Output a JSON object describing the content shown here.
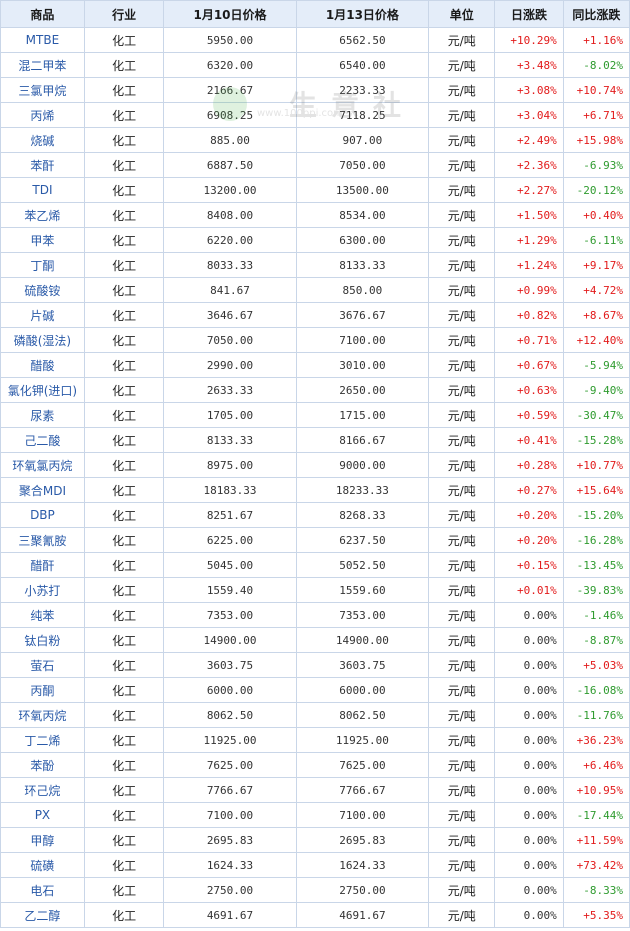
{
  "table": {
    "headers": [
      "商品",
      "行业",
      "1月10日价格",
      "1月13日价格",
      "单位",
      "日涨跌",
      "同比涨跌"
    ],
    "rows": [
      [
        "MTBE",
        "化工",
        "5950.00",
        "6562.50",
        "元/吨",
        "+10.29%",
        "+1.16%"
      ],
      [
        "混二甲苯",
        "化工",
        "6320.00",
        "6540.00",
        "元/吨",
        "+3.48%",
        "-8.02%"
      ],
      [
        "三氯甲烷",
        "化工",
        "2166.67",
        "2233.33",
        "元/吨",
        "+3.08%",
        "+10.74%"
      ],
      [
        "丙烯",
        "化工",
        "6908.25",
        "7118.25",
        "元/吨",
        "+3.04%",
        "+6.71%"
      ],
      [
        "烧碱",
        "化工",
        "885.00",
        "907.00",
        "元/吨",
        "+2.49%",
        "+15.98%"
      ],
      [
        "苯酐",
        "化工",
        "6887.50",
        "7050.00",
        "元/吨",
        "+2.36%",
        "-6.93%"
      ],
      [
        "TDI",
        "化工",
        "13200.00",
        "13500.00",
        "元/吨",
        "+2.27%",
        "-20.12%"
      ],
      [
        "苯乙烯",
        "化工",
        "8408.00",
        "8534.00",
        "元/吨",
        "+1.50%",
        "+0.40%"
      ],
      [
        "甲苯",
        "化工",
        "6220.00",
        "6300.00",
        "元/吨",
        "+1.29%",
        "-6.11%"
      ],
      [
        "丁酮",
        "化工",
        "8033.33",
        "8133.33",
        "元/吨",
        "+1.24%",
        "+9.17%"
      ],
      [
        "硫酸铵",
        "化工",
        "841.67",
        "850.00",
        "元/吨",
        "+0.99%",
        "+4.72%"
      ],
      [
        "片碱",
        "化工",
        "3646.67",
        "3676.67",
        "元/吨",
        "+0.82%",
        "+8.67%"
      ],
      [
        "磷酸(湿法)",
        "化工",
        "7050.00",
        "7100.00",
        "元/吨",
        "+0.71%",
        "+12.40%"
      ],
      [
        "醋酸",
        "化工",
        "2990.00",
        "3010.00",
        "元/吨",
        "+0.67%",
        "-5.94%"
      ],
      [
        "氯化钾(进口)",
        "化工",
        "2633.33",
        "2650.00",
        "元/吨",
        "+0.63%",
        "-9.40%"
      ],
      [
        "尿素",
        "化工",
        "1705.00",
        "1715.00",
        "元/吨",
        "+0.59%",
        "-30.47%"
      ],
      [
        "己二酸",
        "化工",
        "8133.33",
        "8166.67",
        "元/吨",
        "+0.41%",
        "-15.28%"
      ],
      [
        "环氧氯丙烷",
        "化工",
        "8975.00",
        "9000.00",
        "元/吨",
        "+0.28%",
        "+10.77%"
      ],
      [
        "聚合MDI",
        "化工",
        "18183.33",
        "18233.33",
        "元/吨",
        "+0.27%",
        "+15.64%"
      ],
      [
        "DBP",
        "化工",
        "8251.67",
        "8268.33",
        "元/吨",
        "+0.20%",
        "-15.20%"
      ],
      [
        "三聚氰胺",
        "化工",
        "6225.00",
        "6237.50",
        "元/吨",
        "+0.20%",
        "-16.28%"
      ],
      [
        "醋酐",
        "化工",
        "5045.00",
        "5052.50",
        "元/吨",
        "+0.15%",
        "-13.45%"
      ],
      [
        "小苏打",
        "化工",
        "1559.40",
        "1559.60",
        "元/吨",
        "+0.01%",
        "-39.83%"
      ],
      [
        "纯苯",
        "化工",
        "7353.00",
        "7353.00",
        "元/吨",
        "0.00%",
        "-1.46%"
      ],
      [
        "钛白粉",
        "化工",
        "14900.00",
        "14900.00",
        "元/吨",
        "0.00%",
        "-8.87%"
      ],
      [
        "萤石",
        "化工",
        "3603.75",
        "3603.75",
        "元/吨",
        "0.00%",
        "+5.03%"
      ],
      [
        "丙酮",
        "化工",
        "6000.00",
        "6000.00",
        "元/吨",
        "0.00%",
        "-16.08%"
      ],
      [
        "环氧丙烷",
        "化工",
        "8062.50",
        "8062.50",
        "元/吨",
        "0.00%",
        "-11.76%"
      ],
      [
        "丁二烯",
        "化工",
        "11925.00",
        "11925.00",
        "元/吨",
        "0.00%",
        "+36.23%"
      ],
      [
        "苯酚",
        "化工",
        "7625.00",
        "7625.00",
        "元/吨",
        "0.00%",
        "+6.46%"
      ],
      [
        "环己烷",
        "化工",
        "7766.67",
        "7766.67",
        "元/吨",
        "0.00%",
        "+10.95%"
      ],
      [
        "PX",
        "化工",
        "7100.00",
        "7100.00",
        "元/吨",
        "0.00%",
        "-17.44%"
      ],
      [
        "甲醇",
        "化工",
        "2695.83",
        "2695.83",
        "元/吨",
        "0.00%",
        "+11.59%"
      ],
      [
        "硫磺",
        "化工",
        "1624.33",
        "1624.33",
        "元/吨",
        "0.00%",
        "+73.42%"
      ],
      [
        "电石",
        "化工",
        "2750.00",
        "2750.00",
        "元/吨",
        "0.00%",
        "-8.33%"
      ],
      [
        "乙二醇",
        "化工",
        "4691.67",
        "4691.67",
        "元/吨",
        "0.00%",
        "+5.35%"
      ]
    ]
  },
  "watermark": {
    "text": "生意社",
    "url": "www.100ppi.com"
  },
  "colors": {
    "up": "#e21b1b",
    "down": "#2f9b2f",
    "header_bg": "#e4edf9",
    "border": "#c9d6e8",
    "link": "#2a5aa8"
  }
}
